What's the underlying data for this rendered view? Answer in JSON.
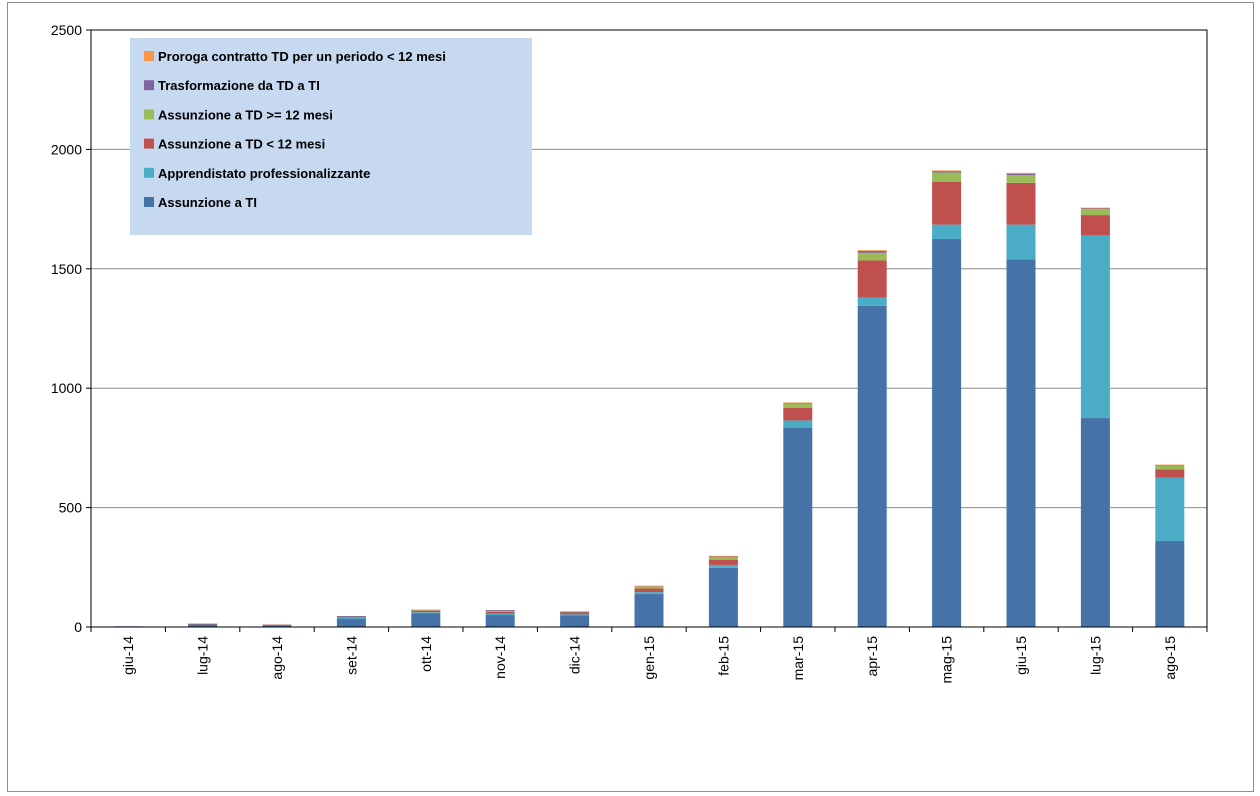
{
  "chart_data": {
    "type": "bar",
    "stacked": true,
    "title": "",
    "xlabel": "",
    "ylabel": "",
    "ylim": [
      0,
      2500
    ],
    "yticks": [
      0,
      500,
      1000,
      1500,
      2000,
      2500
    ],
    "grid": true,
    "legend_position": "top-left",
    "categories": [
      "giu-14",
      "lug-14",
      "ago-14",
      "set-14",
      "ott-14",
      "nov-14",
      "dic-14",
      "gen-15",
      "feb-15",
      "mar-15",
      "apr-15",
      "mag-15",
      "giu-15",
      "lug-15",
      "ago-15"
    ],
    "series": [
      {
        "name": "Assunzione a TI",
        "color": "#4572a7",
        "values": [
          3,
          12,
          8,
          35,
          58,
          50,
          48,
          138,
          248,
          835,
          1345,
          1625,
          1540,
          875,
          360
        ]
      },
      {
        "name": "Apprendistato professionalizzante",
        "color": "#4bacc6",
        "values": [
          0,
          1,
          1,
          4,
          4,
          6,
          5,
          8,
          12,
          30,
          35,
          60,
          145,
          765,
          265
        ]
      },
      {
        "name": "Assunzione a TD < 12 mesi",
        "color": "#c0504d",
        "values": [
          0,
          1,
          1,
          4,
          6,
          8,
          8,
          15,
          22,
          52,
          155,
          180,
          175,
          85,
          35
        ]
      },
      {
        "name": "Assunzione a TD >= 12 mesi",
        "color": "#9bbb59",
        "values": [
          0,
          0,
          0,
          2,
          3,
          5,
          3,
          8,
          10,
          18,
          32,
          38,
          32,
          25,
          15
        ]
      },
      {
        "name": "Trasformazione da TD a TI",
        "color": "#8064a2",
        "values": [
          0,
          0,
          0,
          1,
          1,
          2,
          1,
          3,
          4,
          3,
          8,
          6,
          5,
          4,
          3
        ]
      },
      {
        "name": "Proroga contratto TD per un periodo < 12 mesi",
        "color": "#f79646",
        "values": [
          0,
          0,
          0,
          0,
          1,
          0,
          1,
          1,
          2,
          2,
          3,
          3,
          5,
          2,
          2
        ]
      }
    ]
  }
}
